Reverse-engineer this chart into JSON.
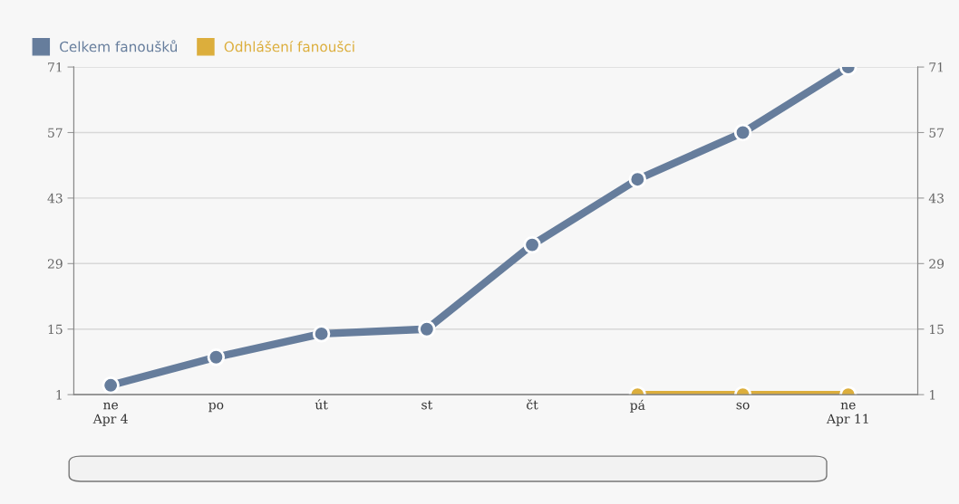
{
  "chart_data": {
    "type": "line",
    "categories": [
      "ne\nApr 4",
      "po",
      "út",
      "st",
      "čt",
      "pá",
      "so",
      "ne\nApr 11"
    ],
    "series": [
      {
        "name": "Celkem fanoušků",
        "color": "#667d9c",
        "values": [
          3,
          9,
          14,
          15,
          33,
          47,
          57,
          71
        ]
      },
      {
        "name": "Odhlášení fanoušci",
        "color": "#dcae3c",
        "values": [
          null,
          null,
          null,
          null,
          null,
          1,
          1,
          1
        ]
      }
    ],
    "ylim": [
      1,
      71
    ],
    "yticks": [
      1,
      15,
      29,
      43,
      57,
      71
    ],
    "y2lim": [
      1,
      71
    ],
    "y2ticks": [
      1,
      15,
      29,
      43,
      57,
      71
    ],
    "grid": "y",
    "legend": "top left",
    "marker": "circle",
    "line_style": "solid"
  }
}
